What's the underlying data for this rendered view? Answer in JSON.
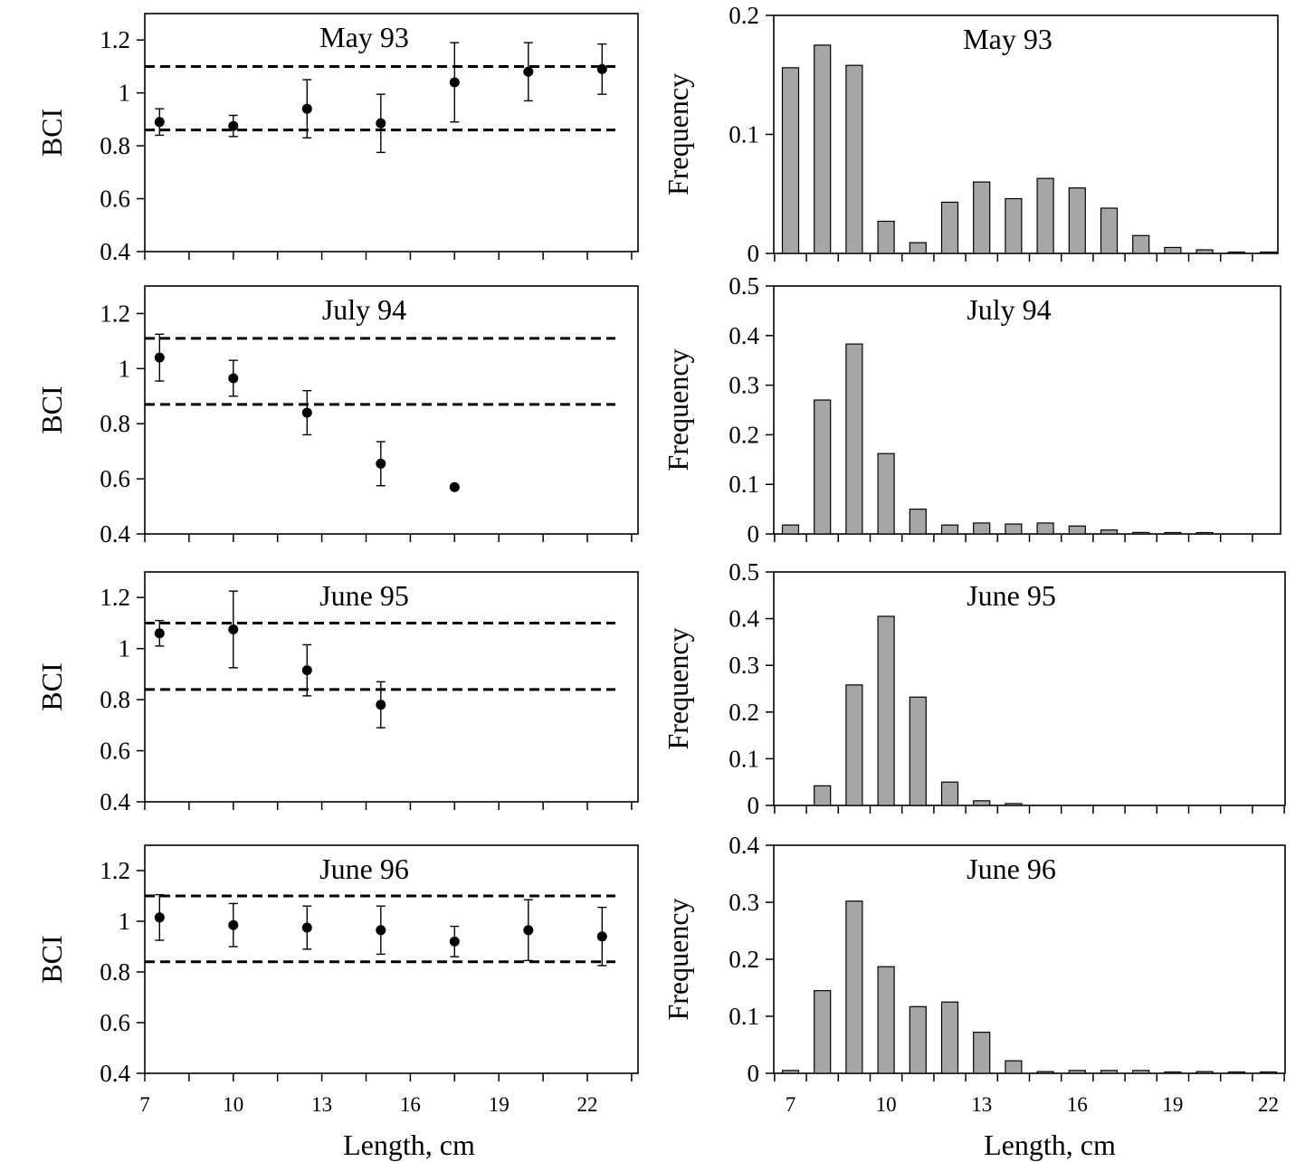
{
  "figure": {
    "xlabel_left": "Length, cm",
    "xlabel_right": "Length, cm"
  },
  "chart_data": [
    {
      "type": "scatter",
      "title": "May 93",
      "ylabel": "BCI",
      "xlabel": "Length, cm",
      "xlim": [
        7,
        24.5
      ],
      "ylim": [
        0.4,
        1.3
      ],
      "xticks": [
        7,
        10,
        13,
        16,
        19,
        22
      ],
      "yticks": [
        0.4,
        0.6,
        0.8,
        1,
        1.2
      ],
      "ytick_labels": [
        "0.4",
        "0.6",
        "0.8",
        "1",
        "1.2"
      ],
      "points": [
        {
          "x": 7.5,
          "y": 0.89,
          "err": 0.05
        },
        {
          "x": 10,
          "y": 0.875,
          "err": 0.04
        },
        {
          "x": 12.5,
          "y": 0.94,
          "err": 0.11
        },
        {
          "x": 15,
          "y": 0.885,
          "err": 0.11
        },
        {
          "x": 17.5,
          "y": 1.04,
          "err": 0.15
        },
        {
          "x": 20,
          "y": 1.08,
          "err": 0.11
        },
        {
          "x": 22.5,
          "y": 1.09,
          "err": 0.095
        }
      ],
      "reference_lines": [
        1.1,
        0.86
      ]
    },
    {
      "type": "bar",
      "title": "May 93",
      "ylabel": "Frequency",
      "xlabel": "Length, cm",
      "ylim": [
        0,
        0.2
      ],
      "yticks": [
        0,
        0.1,
        0.2
      ],
      "ytick_labels": [
        "0",
        "0.1",
        "0.2"
      ],
      "categories": [
        7,
        8,
        9,
        10,
        11,
        12,
        13,
        14,
        15,
        16,
        17,
        18,
        19,
        20,
        21,
        22
      ],
      "xtick_labels": [],
      "values": [
        0.156,
        0.175,
        0.158,
        0.027,
        0.009,
        0.043,
        0.06,
        0.046,
        0.063,
        0.055,
        0.038,
        0.015,
        0.005,
        0.003,
        0.001,
        0.001
      ]
    },
    {
      "type": "scatter",
      "title": "July 94",
      "ylabel": "BCI",
      "xlabel": "Length, cm",
      "xlim": [
        7,
        24.5
      ],
      "ylim": [
        0.4,
        1.3
      ],
      "xticks": [
        7,
        10,
        13,
        16,
        19,
        22
      ],
      "yticks": [
        0.4,
        0.6,
        0.8,
        1,
        1.2
      ],
      "ytick_labels": [
        "0.4",
        "0.6",
        "0.8",
        "1",
        "1.2"
      ],
      "points": [
        {
          "x": 7.5,
          "y": 1.04,
          "err": 0.085
        },
        {
          "x": 10,
          "y": 0.965,
          "err": 0.065
        },
        {
          "x": 12.5,
          "y": 0.84,
          "err": 0.08
        },
        {
          "x": 15,
          "y": 0.655,
          "err": 0.08
        },
        {
          "x": 17.5,
          "y": 0.57,
          "err": 0
        }
      ],
      "reference_lines": [
        1.11,
        0.87
      ]
    },
    {
      "type": "bar",
      "title": "July 94",
      "ylabel": "Frequency",
      "xlabel": "Length, cm",
      "ylim": [
        0,
        0.5
      ],
      "yticks": [
        0,
        0.1,
        0.2,
        0.3,
        0.4,
        0.5
      ],
      "ytick_labels": [
        "0",
        "0.1",
        "0.2",
        "0.3",
        "0.4",
        "0.5"
      ],
      "categories": [
        7,
        8,
        9,
        10,
        11,
        12,
        13,
        14,
        15,
        16,
        17,
        18,
        19,
        20,
        21,
        22
      ],
      "xtick_labels": [],
      "values": [
        0.018,
        0.27,
        0.383,
        0.162,
        0.05,
        0.018,
        0.022,
        0.02,
        0.022,
        0.016,
        0.008,
        0.003,
        0.002,
        0.002,
        0,
        0
      ]
    },
    {
      "type": "scatter",
      "title": "June 95",
      "ylabel": "BCI",
      "xlabel": "Length, cm",
      "xlim": [
        7,
        24.5
      ],
      "ylim": [
        0.4,
        1.3
      ],
      "xticks": [
        7,
        10,
        13,
        16,
        19,
        22
      ],
      "yticks": [
        0.4,
        0.6,
        0.8,
        1,
        1.2
      ],
      "ytick_labels": [
        "0.4",
        "0.6",
        "0.8",
        "1",
        "1.2"
      ],
      "points": [
        {
          "x": 7.5,
          "y": 1.06,
          "err": 0.05
        },
        {
          "x": 10,
          "y": 1.075,
          "err": 0.15
        },
        {
          "x": 12.5,
          "y": 0.915,
          "err": 0.1
        },
        {
          "x": 15,
          "y": 0.78,
          "err": 0.09
        }
      ],
      "reference_lines": [
        1.1,
        0.84
      ]
    },
    {
      "type": "bar",
      "title": "June 95",
      "ylabel": "Frequency",
      "xlabel": "Length, cm",
      "ylim": [
        0,
        0.5
      ],
      "yticks": [
        0,
        0.1,
        0.2,
        0.3,
        0.4,
        0.5
      ],
      "ytick_labels": [
        "0",
        "0.1",
        "0.2",
        "0.3",
        "0.4",
        "0.5"
      ],
      "categories": [
        7,
        8,
        9,
        10,
        11,
        12,
        13,
        14,
        15,
        16,
        17,
        18,
        19,
        20,
        21,
        22
      ],
      "xtick_labels": [],
      "values": [
        0,
        0.042,
        0.258,
        0.405,
        0.232,
        0.05,
        0.01,
        0.004,
        0,
        0,
        0,
        0,
        0,
        0,
        0,
        0
      ]
    },
    {
      "type": "scatter",
      "title": "June 96",
      "ylabel": "BCI",
      "xlabel": "Length, cm",
      "xlim": [
        7,
        24.5
      ],
      "ylim": [
        0.4,
        1.3
      ],
      "xticks": [
        7,
        10,
        13,
        16,
        19,
        22
      ],
      "yticks": [
        0.4,
        0.6,
        0.8,
        1,
        1.2
      ],
      "ytick_labels": [
        "0.4",
        "0.6",
        "0.8",
        "1",
        "1.2"
      ],
      "xtick_labels": [
        "7",
        "10",
        "13",
        "16",
        "19",
        "22"
      ],
      "points": [
        {
          "x": 7.5,
          "y": 1.015,
          "err": 0.09
        },
        {
          "x": 10,
          "y": 0.985,
          "err": 0.085
        },
        {
          "x": 12.5,
          "y": 0.975,
          "err": 0.085
        },
        {
          "x": 15,
          "y": 0.965,
          "err": 0.095
        },
        {
          "x": 17.5,
          "y": 0.92,
          "err": 0.06
        },
        {
          "x": 20,
          "y": 0.965,
          "err": 0.12
        },
        {
          "x": 22.5,
          "y": 0.94,
          "err": 0.115
        }
      ],
      "reference_lines": [
        1.1,
        0.84
      ]
    },
    {
      "type": "bar",
      "title": "June 96",
      "ylabel": "Frequency",
      "xlabel": "Length, cm",
      "ylim": [
        0,
        0.4
      ],
      "yticks": [
        0,
        0.1,
        0.2,
        0.3,
        0.4
      ],
      "ytick_labels": [
        "0",
        "0.1",
        "0.2",
        "0.3",
        "0.4"
      ],
      "categories": [
        7,
        8,
        9,
        10,
        11,
        12,
        13,
        14,
        15,
        16,
        17,
        18,
        19,
        20,
        21,
        22
      ],
      "xtick_labels": [
        "7",
        "10",
        "13",
        "16",
        "19",
        "22"
      ],
      "values": [
        0.005,
        0.145,
        0.302,
        0.187,
        0.117,
        0.125,
        0.072,
        0.022,
        0.003,
        0.005,
        0.005,
        0.005,
        0.002,
        0.003,
        0.002,
        0.002
      ]
    }
  ]
}
